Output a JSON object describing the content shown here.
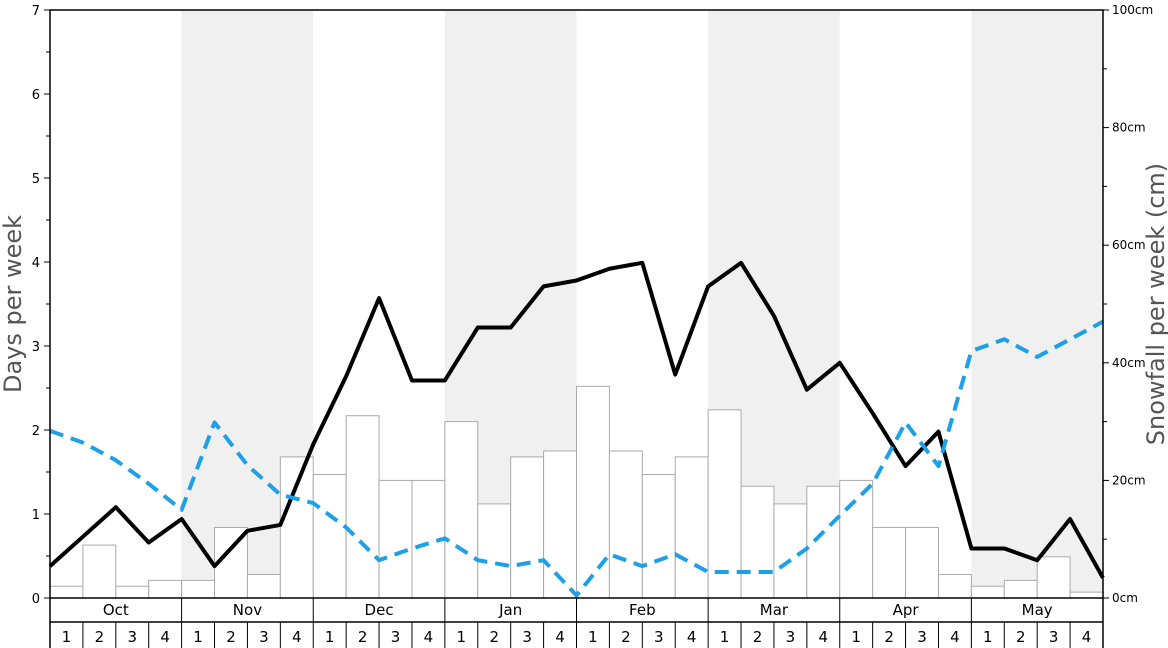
{
  "chart_data": {
    "type": "bar+line",
    "months": [
      "Oct",
      "Nov",
      "Dec",
      "Jan",
      "Feb",
      "Mar",
      "Apr",
      "May"
    ],
    "weeks": [
      "1",
      "2",
      "3",
      "4"
    ],
    "left_axis": {
      "title": "Days per week",
      "ylim": [
        0,
        7
      ],
      "ticks": [
        "0",
        "1",
        "2",
        "3",
        "4",
        "5",
        "6",
        "7"
      ]
    },
    "right_axis": {
      "title": "Snowfall per week (cm)",
      "ylim": [
        0,
        100
      ],
      "ticks": [
        "0cm",
        "20cm",
        "40cm",
        "60cm",
        "80cm",
        "100cm"
      ]
    },
    "series": [
      {
        "kind": "bar",
        "axis": "right",
        "color": "#ffffff",
        "edge_color": "#aaaaaa",
        "values": [
          2,
          9,
          2,
          3,
          3,
          12,
          4,
          24,
          21,
          31,
          20,
          20,
          30,
          16,
          24,
          25,
          36,
          25,
          21,
          24,
          32,
          19,
          16,
          19,
          20,
          12,
          12,
          4,
          2,
          3,
          7,
          1
        ]
      },
      {
        "kind": "line",
        "axis": "left",
        "color": "#000000",
        "style": "solid",
        "values": [
          0.38,
          0.73,
          1.08,
          0.66,
          0.94,
          0.38,
          0.8,
          0.87,
          1.83,
          2.64,
          3.57,
          2.59,
          2.59,
          3.22,
          3.22,
          3.71,
          3.78,
          3.92,
          3.99,
          2.66,
          3.71,
          3.99,
          3.36,
          2.48,
          2.8,
          2.2,
          1.57,
          1.98,
          0.59,
          0.59,
          0.45,
          0.94,
          0.24
        ]
      },
      {
        "kind": "line",
        "axis": "left",
        "color": "#1ea0e6",
        "style": "dashed",
        "values": [
          1.99,
          1.85,
          1.64,
          1.36,
          1.05,
          2.09,
          1.58,
          1.23,
          1.13,
          0.84,
          0.45,
          0.59,
          0.71,
          0.45,
          0.38,
          0.45,
          0.03,
          0.52,
          0.38,
          0.52,
          0.31,
          0.31,
          0.31,
          0.59,
          0.98,
          1.36,
          2.09,
          1.57,
          2.94,
          3.08,
          2.87,
          3.08,
          3.29
        ]
      }
    ],
    "shaded_months": [
      "Nov",
      "Jan",
      "Mar",
      "May"
    ],
    "grid": false,
    "legend": "none"
  }
}
